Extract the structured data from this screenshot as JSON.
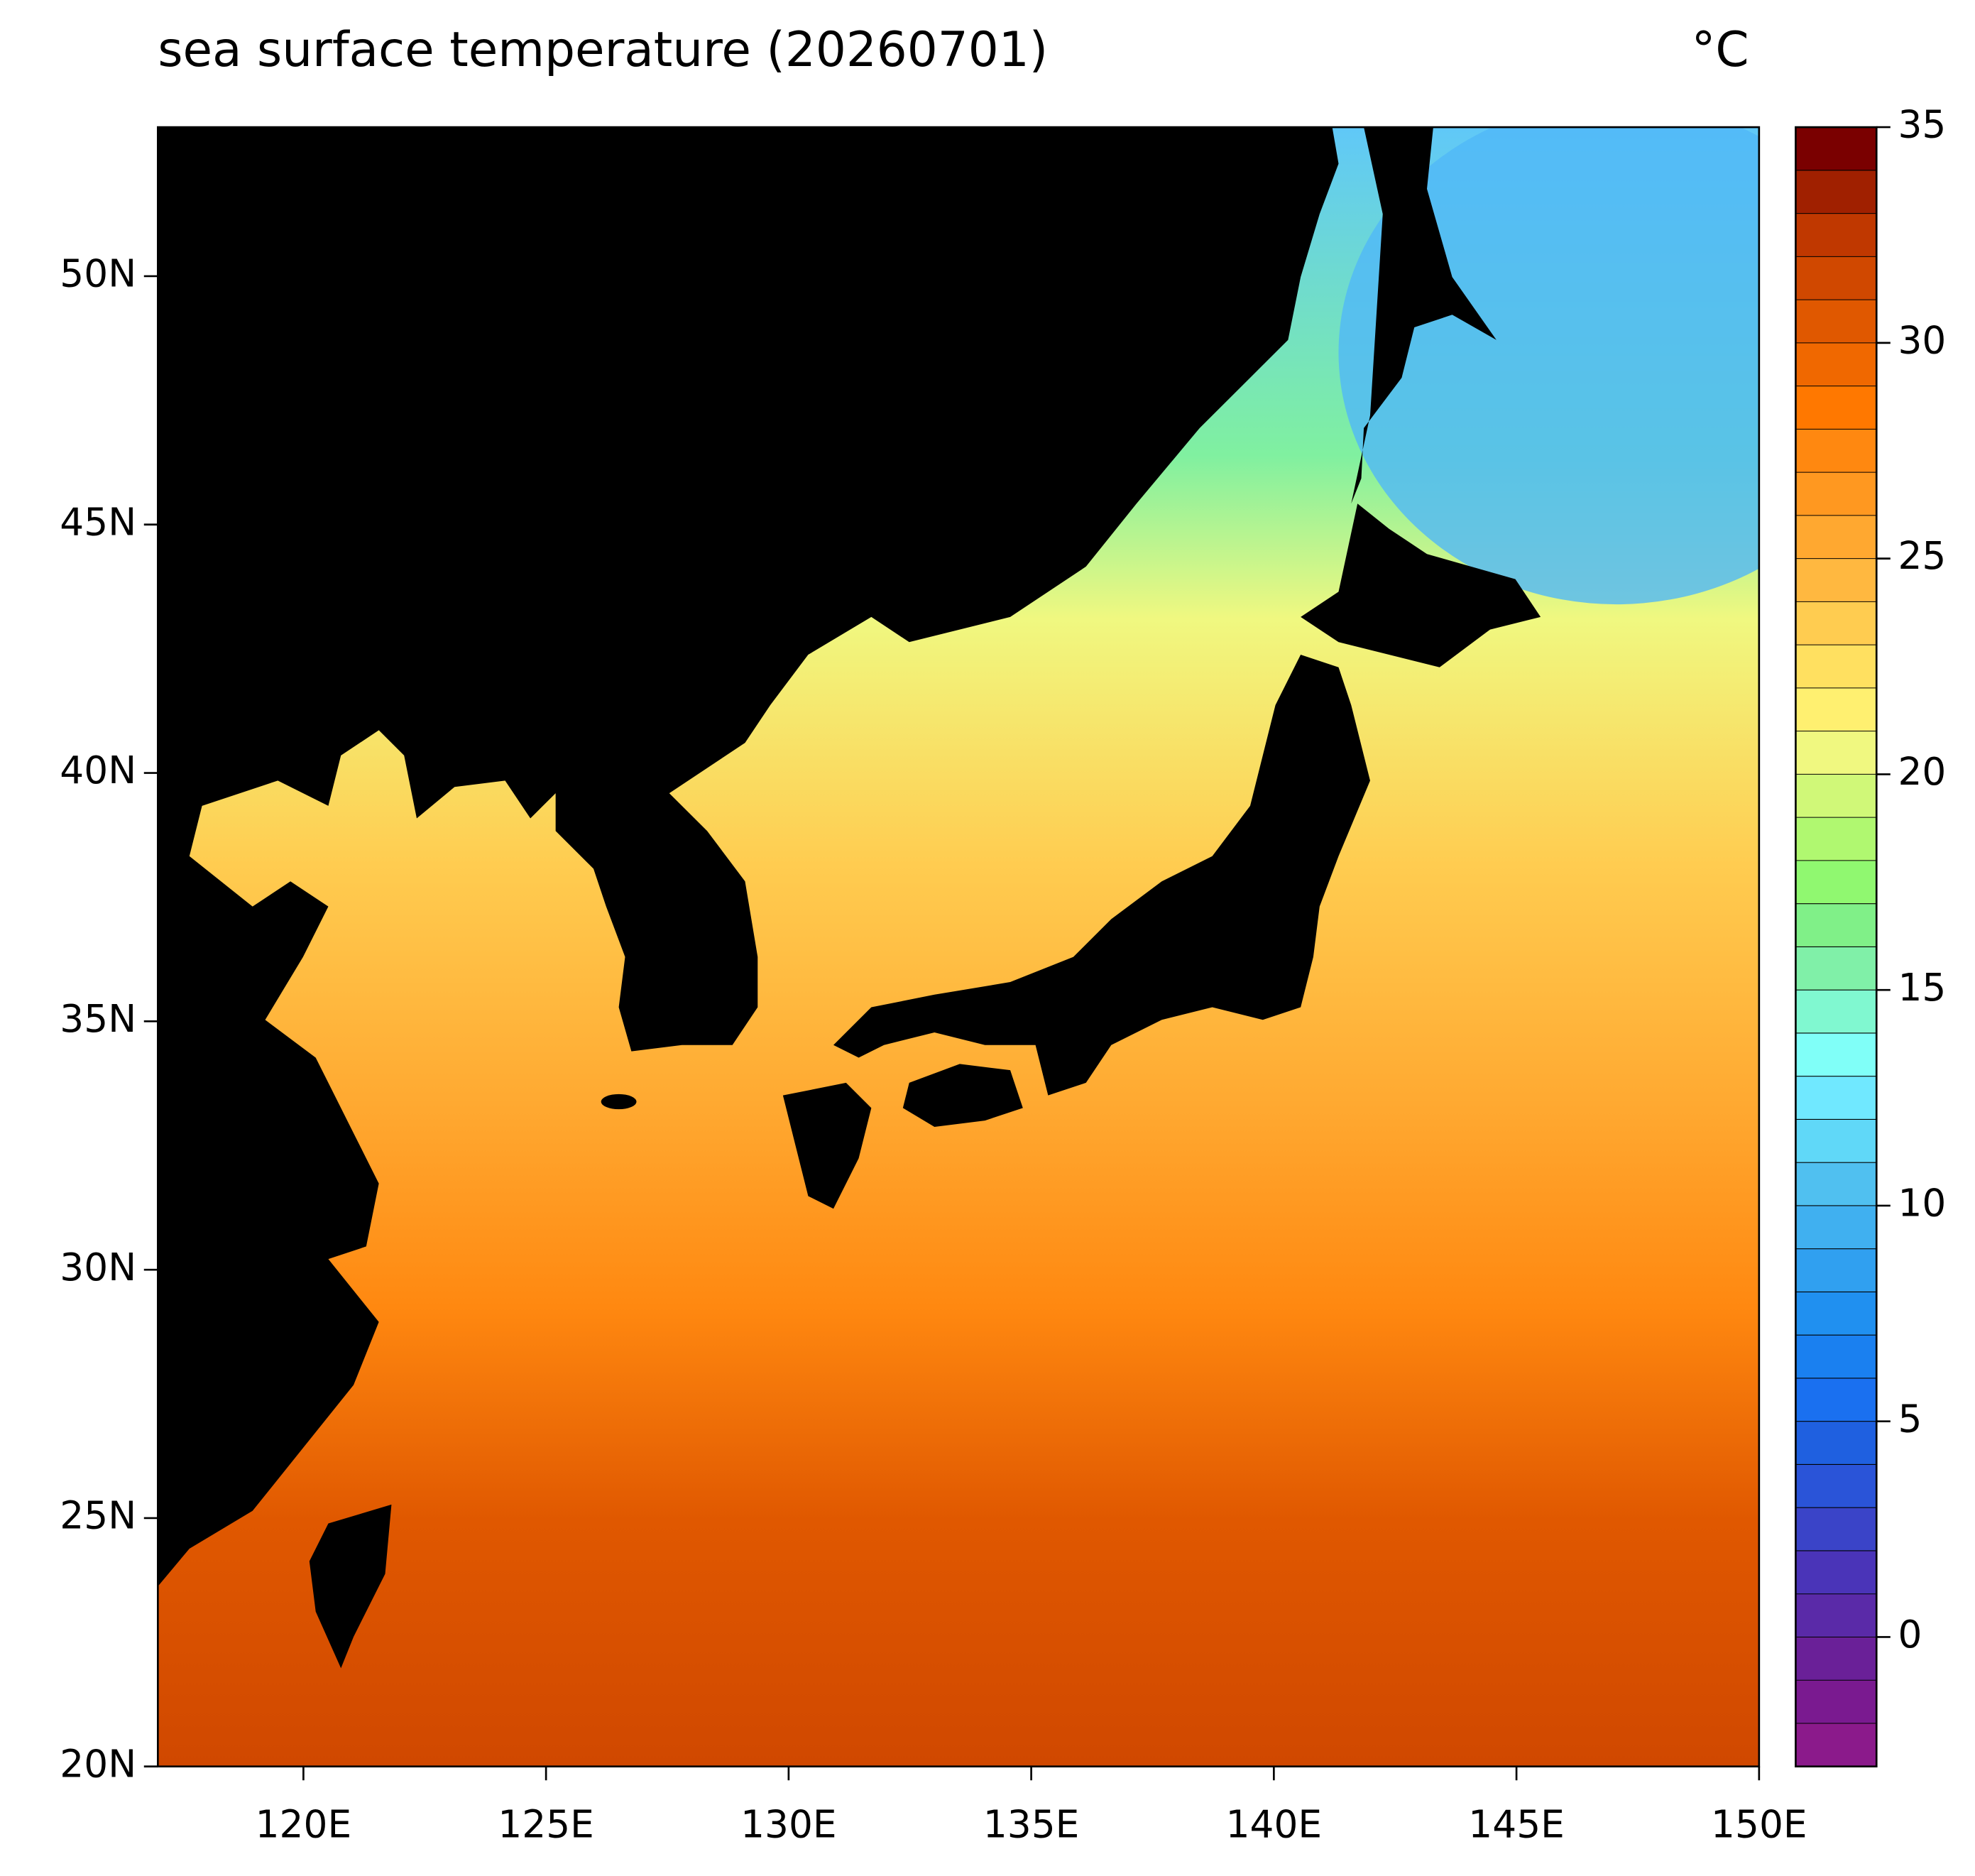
{
  "chart_data": {
    "type": "map",
    "title": "sea surface temperature (20260701)",
    "unit": "°C",
    "xlim": [
      117,
      150
    ],
    "xticks": [
      {
        "value": 120,
        "label": "120E"
      },
      {
        "value": 125,
        "label": "125E"
      },
      {
        "value": 130,
        "label": "130E"
      },
      {
        "value": 135,
        "label": "135E"
      },
      {
        "value": 140,
        "label": "140E"
      },
      {
        "value": 145,
        "label": "145E"
      },
      {
        "value": 150,
        "label": "150E"
      }
    ],
    "ylim": [
      20,
      53
    ],
    "yticks": [
      {
        "value": 20,
        "label": "20N"
      },
      {
        "value": 25,
        "label": "25N"
      },
      {
        "value": 30,
        "label": "30N"
      },
      {
        "value": 35,
        "label": "35N"
      },
      {
        "value": 40,
        "label": "40N"
      },
      {
        "value": 45,
        "label": "45N"
      },
      {
        "value": 50,
        "label": "50N"
      }
    ],
    "colorbar": {
      "clim": [
        -3,
        35
      ],
      "ticks": [
        0,
        5,
        10,
        15,
        20,
        25,
        30,
        35
      ],
      "colors": [
        "#8b1a8b",
        "#7a1a90",
        "#6a2098",
        "#5a2aa8",
        "#4a34b8",
        "#3a44c8",
        "#2a54d8",
        "#1f60e0",
        "#1a70f0",
        "#1a80f0",
        "#2090f0",
        "#30a0f0",
        "#40b0f0",
        "#50c0f0",
        "#60d8f8",
        "#70e8ff",
        "#80fff8",
        "#80f8d0",
        "#80f0a8",
        "#80f088",
        "#90f870",
        "#b0f870",
        "#d0f878",
        "#f0f880",
        "#fff070",
        "#ffe060",
        "#ffcc50",
        "#ffb840",
        "#ffa830",
        "#ff9820",
        "#ff8810",
        "#ff7800",
        "#f06800",
        "#e05800",
        "#d04800",
        "#c03800",
        "#a02000",
        "#7a0000"
      ]
    }
  }
}
